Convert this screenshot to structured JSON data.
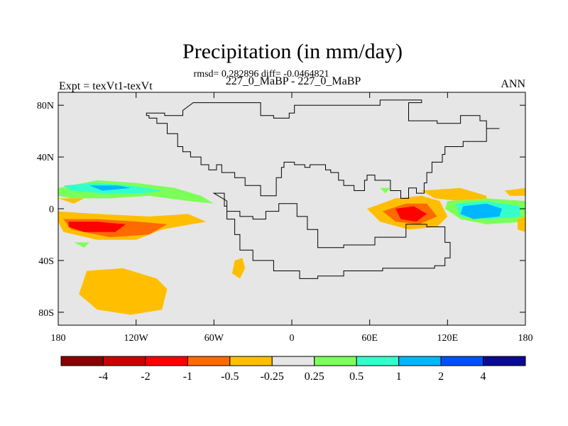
{
  "chart_data": {
    "type": "contour-map",
    "title": "Precipitation (in mm/day)",
    "stats_line": "rmsd= 0.282896 diff= -0.0464821",
    "case_line": "227_0_MaBP - 227_0_MaBP",
    "left_label": "Expt = texVt1-texVt",
    "right_label": "ANN",
    "x_ticks": [
      {
        "value": -180,
        "label": "180"
      },
      {
        "value": -120,
        "label": "120W"
      },
      {
        "value": -60,
        "label": "60W"
      },
      {
        "value": 0,
        "label": "0"
      },
      {
        "value": 60,
        "label": "60E"
      },
      {
        "value": 120,
        "label": "120E"
      },
      {
        "value": 180,
        "label": "180"
      }
    ],
    "y_ticks": [
      {
        "value": 80,
        "label": "80N"
      },
      {
        "value": 40,
        "label": "40N"
      },
      {
        "value": 0,
        "label": "0"
      },
      {
        "value": -40,
        "label": "40S"
      },
      {
        "value": -80,
        "label": "80S"
      }
    ],
    "xlim": [
      -180,
      180
    ],
    "ylim": [
      -90,
      90
    ],
    "background_color": "#e6e6e6",
    "colorbar": {
      "colors": [
        "#8b0000",
        "#cc0000",
        "#ff0000",
        "#ff6a00",
        "#ffbf00",
        "#e6e6e6",
        "#7dff5a",
        "#33ffcc",
        "#00b7ff",
        "#0050ff",
        "#0a0a96"
      ],
      "labels": [
        "-4",
        "-2",
        "-1",
        "-0.5",
        "-0.25",
        "0.25",
        "0.5",
        "1",
        "2",
        "4"
      ]
    },
    "continent_outline": [
      [
        -76,
        82
      ],
      [
        -24,
        82
      ],
      [
        -24,
        72
      ],
      [
        -14,
        72
      ],
      [
        -14,
        70
      ],
      [
        -2,
        70
      ],
      [
        -2,
        74
      ],
      [
        2,
        74
      ],
      [
        2,
        80
      ],
      [
        50,
        80
      ],
      [
        68,
        84
      ],
      [
        100,
        82
      ],
      [
        90,
        74
      ],
      [
        90,
        68
      ],
      [
        112,
        66
      ],
      [
        130,
        72
      ],
      [
        145,
        68
      ],
      [
        150,
        62
      ],
      [
        160,
        62
      ],
      [
        150,
        52
      ],
      [
        132,
        48
      ],
      [
        118,
        42
      ],
      [
        116,
        36
      ],
      [
        108,
        28
      ],
      [
        104,
        20
      ],
      [
        102,
        12
      ],
      [
        96,
        16
      ],
      [
        90,
        8
      ],
      [
        84,
        14
      ],
      [
        76,
        22
      ],
      [
        70,
        22
      ],
      [
        64,
        26
      ],
      [
        58,
        22
      ],
      [
        56,
        14
      ],
      [
        48,
        18
      ],
      [
        40,
        22
      ],
      [
        36,
        28
      ],
      [
        30,
        30
      ],
      [
        26,
        34
      ],
      [
        20,
        34
      ],
      [
        14,
        32
      ],
      [
        10,
        34
      ],
      [
        2,
        36
      ],
      [
        -6,
        32
      ],
      [
        -8,
        24
      ],
      [
        -12,
        16
      ],
      [
        -12,
        10
      ],
      [
        -24,
        18
      ],
      [
        -36,
        24
      ],
      [
        -44,
        28
      ],
      [
        -50,
        28
      ],
      [
        -54,
        34
      ],
      [
        -58,
        30
      ],
      [
        -64,
        34
      ],
      [
        -70,
        40
      ],
      [
        -78,
        44
      ],
      [
        -84,
        48
      ],
      [
        -88,
        54
      ],
      [
        -88,
        58
      ],
      [
        -96,
        66
      ],
      [
        -104,
        70
      ],
      [
        -110,
        72
      ],
      [
        -112,
        74
      ],
      [
        -98,
        72
      ],
      [
        -86,
        72
      ],
      [
        -84,
        76
      ]
    ],
    "continent_outline_south": [
      [
        -60,
        12
      ],
      [
        -52,
        2
      ],
      [
        -50,
        -8
      ],
      [
        -44,
        -20
      ],
      [
        -40,
        -32
      ],
      [
        -30,
        -40
      ],
      [
        -14,
        -48
      ],
      [
        6,
        -54
      ],
      [
        20,
        -52
      ],
      [
        40,
        -48
      ],
      [
        70,
        -46
      ],
      [
        90,
        -46
      ],
      [
        110,
        -44
      ],
      [
        118,
        -38
      ],
      [
        122,
        -26
      ],
      [
        118,
        -14
      ],
      [
        104,
        -12
      ],
      [
        88,
        -22
      ],
      [
        64,
        -28
      ],
      [
        40,
        -30
      ],
      [
        20,
        -16
      ],
      [
        12,
        -6
      ],
      [
        4,
        4
      ],
      [
        -2,
        4
      ],
      [
        -10,
        -2
      ],
      [
        -20,
        -8
      ],
      [
        -30,
        -6
      ],
      [
        -40,
        -2
      ],
      [
        -50,
        6
      ]
    ],
    "anomaly_regions": [
      {
        "level": "-0.25",
        "color": "#ffbf00",
        "points": [
          [
            -180,
            -2
          ],
          [
            -150,
            -4
          ],
          [
            -110,
            -6
          ],
          [
            -80,
            -4
          ],
          [
            -66,
            -10
          ],
          [
            -100,
            -16
          ],
          [
            -120,
            -24
          ],
          [
            -150,
            -24
          ],
          [
            -176,
            -18
          ],
          [
            -180,
            -10
          ]
        ]
      },
      {
        "level": "-0.5",
        "color": "#ff6a00",
        "points": [
          [
            -176,
            -8
          ],
          [
            -150,
            -8
          ],
          [
            -118,
            -10
          ],
          [
            -96,
            -12
          ],
          [
            -110,
            -20
          ],
          [
            -140,
            -22
          ],
          [
            -170,
            -16
          ]
        ]
      },
      {
        "level": "-1",
        "color": "#ff0000",
        "points": [
          [
            -172,
            -10
          ],
          [
            -150,
            -10
          ],
          [
            -128,
            -12
          ],
          [
            -136,
            -18
          ],
          [
            -160,
            -18
          ],
          [
            -172,
            -14
          ]
        ]
      },
      {
        "level": "0.5",
        "color": "#7dff5a",
        "points": [
          [
            -180,
            16
          ],
          [
            -150,
            22
          ],
          [
            -120,
            20
          ],
          [
            -90,
            16
          ],
          [
            -70,
            10
          ],
          [
            -60,
            4
          ],
          [
            -80,
            6
          ],
          [
            -110,
            10
          ],
          [
            -140,
            8
          ],
          [
            -170,
            8
          ],
          [
            -180,
            10
          ]
        ]
      },
      {
        "level": "1",
        "color": "#33ffcc",
        "points": [
          [
            -176,
            18
          ],
          [
            -150,
            20
          ],
          [
            -124,
            18
          ],
          [
            -100,
            14
          ],
          [
            -116,
            12
          ],
          [
            -146,
            12
          ],
          [
            -170,
            14
          ]
        ]
      },
      {
        "level": "2",
        "color": "#00b7ff",
        "points": [
          [
            -156,
            18
          ],
          [
            -134,
            18
          ],
          [
            -124,
            16
          ],
          [
            -146,
            14
          ]
        ]
      },
      {
        "level": "-0.25",
        "color": "#ffbf00",
        "points": [
          [
            -180,
            8
          ],
          [
            -160,
            8
          ],
          [
            -168,
            4
          ]
        ]
      },
      {
        "level": "-0.25",
        "color": "#ffbf00",
        "points": [
          [
            -158,
            -48
          ],
          [
            -130,
            -46
          ],
          [
            -104,
            -54
          ],
          [
            -96,
            -62
          ],
          [
            -100,
            -78
          ],
          [
            -124,
            -82
          ],
          [
            -150,
            -78
          ],
          [
            -164,
            -66
          ]
        ]
      },
      {
        "level": "-0.25",
        "color": "#ffbf00",
        "points": [
          [
            58,
            0
          ],
          [
            80,
            8
          ],
          [
            100,
            10
          ],
          [
            114,
            6
          ],
          [
            120,
            -6
          ],
          [
            112,
            -14
          ],
          [
            90,
            -16
          ],
          [
            68,
            -10
          ]
        ]
      },
      {
        "level": "-0.5",
        "color": "#ff6a00",
        "points": [
          [
            70,
            -2
          ],
          [
            88,
            4
          ],
          [
            104,
            4
          ],
          [
            112,
            -6
          ],
          [
            98,
            -12
          ],
          [
            80,
            -10
          ]
        ]
      },
      {
        "level": "-1",
        "color": "#ff0000",
        "points": [
          [
            80,
            0
          ],
          [
            94,
            2
          ],
          [
            104,
            -4
          ],
          [
            96,
            -10
          ],
          [
            84,
            -8
          ]
        ]
      },
      {
        "level": "-0.25",
        "color": "#ffbf00",
        "points": [
          [
            100,
            14
          ],
          [
            130,
            16
          ],
          [
            150,
            10
          ],
          [
            150,
            4
          ],
          [
            130,
            6
          ],
          [
            110,
            8
          ]
        ]
      },
      {
        "level": "0.5",
        "color": "#7dff5a",
        "points": [
          [
            120,
            6
          ],
          [
            150,
            8
          ],
          [
            180,
            6
          ],
          [
            180,
            -10
          ],
          [
            150,
            -12
          ],
          [
            130,
            -8
          ],
          [
            118,
            0
          ]
        ]
      },
      {
        "level": "1",
        "color": "#33ffcc",
        "points": [
          [
            126,
            4
          ],
          [
            150,
            6
          ],
          [
            176,
            2
          ],
          [
            176,
            -6
          ],
          [
            152,
            -8
          ],
          [
            130,
            -6
          ]
        ]
      },
      {
        "level": "2",
        "color": "#00b7ff",
        "points": [
          [
            132,
            2
          ],
          [
            150,
            4
          ],
          [
            162,
            0
          ],
          [
            160,
            -6
          ],
          [
            140,
            -8
          ],
          [
            130,
            -4
          ]
        ]
      },
      {
        "level": "-0.25",
        "color": "#ffbf00",
        "points": [
          [
            164,
            14
          ],
          [
            180,
            16
          ],
          [
            180,
            10
          ],
          [
            168,
            10
          ]
        ]
      },
      {
        "level": "-0.25",
        "color": "#ffbf00",
        "points": [
          [
            174,
            -8
          ],
          [
            180,
            -6
          ],
          [
            180,
            -18
          ],
          [
            174,
            -16
          ]
        ]
      },
      {
        "level": "-0.25",
        "color": "#ffbf00",
        "points": [
          [
            -44,
            -40
          ],
          [
            -38,
            -38
          ],
          [
            -36,
            -46
          ],
          [
            -40,
            -54
          ],
          [
            -46,
            -50
          ]
        ]
      },
      {
        "level": "0.5",
        "color": "#7dff5a",
        "points": [
          [
            -168,
            -26
          ],
          [
            -156,
            -26
          ],
          [
            -160,
            -30
          ]
        ]
      },
      {
        "level": "0.5",
        "color": "#7dff5a",
        "points": [
          [
            68,
            16
          ],
          [
            76,
            16
          ],
          [
            72,
            12
          ]
        ]
      }
    ]
  }
}
